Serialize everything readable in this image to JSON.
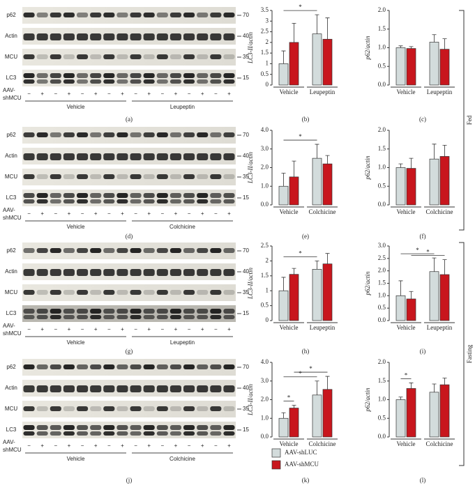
{
  "conditions": [
    "Fed",
    "Fasting"
  ],
  "legend": {
    "series": [
      {
        "name": "AAV-shLUC",
        "color": "#d3dcdc"
      },
      {
        "name": "AAV-shMCU",
        "color": "#c8161d"
      }
    ]
  },
  "blots": [
    {
      "panel": "(a)",
      "rows": [
        {
          "label": "p62",
          "marker": "70"
        },
        {
          "label": "Actin",
          "marker": "40"
        },
        {
          "label": "MCU",
          "marker": "35"
        },
        {
          "label": "LC3",
          "marker": "15"
        }
      ],
      "aav": "AAV-",
      "shmcu": "shMCU",
      "lane_signs": [
        "−",
        "+",
        "−",
        "+",
        "−",
        "+",
        "−",
        "+",
        "−",
        "+",
        "−",
        "+",
        "−",
        "+",
        "−",
        "+"
      ],
      "groups": [
        "Vehicle",
        "Leupeptin"
      ]
    },
    {
      "panel": "(d)",
      "rows": [
        {
          "label": "p62",
          "marker": "70"
        },
        {
          "label": "Actin",
          "marker": "40"
        },
        {
          "label": "MCU",
          "marker": "35"
        },
        {
          "label": "LC3",
          "marker": "15"
        }
      ],
      "aav": "AAV-",
      "shmcu": "shMCU",
      "lane_signs": [
        "−",
        "+",
        "−",
        "+",
        "−",
        "+",
        "−",
        "+",
        "−",
        "+",
        "−",
        "+",
        "−",
        "+",
        "−",
        "+"
      ],
      "groups": [
        "Vehicle",
        "Colchicine"
      ]
    },
    {
      "panel": "(g)",
      "rows": [
        {
          "label": "p62",
          "marker": "70"
        },
        {
          "label": "Actin",
          "marker": "40"
        },
        {
          "label": "MCU",
          "marker": "35"
        },
        {
          "label": "LC3",
          "marker": "15"
        }
      ],
      "aav": "AAV-",
      "shmcu": "shMCU",
      "lane_signs": [
        "−",
        "+",
        "−",
        "+",
        "−",
        "+",
        "−",
        "+",
        "−",
        "+",
        "−",
        "+",
        "−",
        "+",
        "−",
        "+"
      ],
      "groups": [
        "Vehicle",
        "Leupeptin"
      ]
    },
    {
      "panel": "(j)",
      "rows": [
        {
          "label": "p62",
          "marker": "70"
        },
        {
          "label": "Actin",
          "marker": "40"
        },
        {
          "label": "MCU",
          "marker": "35"
        },
        {
          "label": "LC3",
          "marker": "15"
        }
      ],
      "aav": "AAV-",
      "shmcu": "shMCU",
      "lane_signs": [
        "−",
        "+",
        "−",
        "+",
        "−",
        "+",
        "−",
        "+",
        "−",
        "+",
        "−",
        "+",
        "−",
        "+",
        "−",
        "+"
      ],
      "groups": [
        "Vehicle",
        "Colchicine"
      ]
    }
  ],
  "chart_data": [
    {
      "type": "bar",
      "panel": "(b)",
      "ylabel": "LC3-II/actin",
      "categories": [
        "Vehicle",
        "Leupeptin"
      ],
      "ylim": [
        0,
        3.5
      ],
      "yticks": [
        0,
        0.5,
        1,
        1.5,
        2,
        2.5,
        3,
        3.5
      ],
      "series": [
        {
          "values": [
            1.0,
            2.4
          ],
          "errors": [
            0.6,
            0.9
          ]
        },
        {
          "values": [
            2.0,
            2.15
          ],
          "errors": [
            0.9,
            1.0
          ]
        }
      ],
      "significance": [
        {
          "label": "*",
          "between": [
            [
              0,
              0
            ],
            [
              1,
              0
            ]
          ]
        }
      ]
    },
    {
      "type": "bar",
      "panel": "(c)",
      "ylabel": "p62/actin",
      "categories": [
        "Vehicle",
        "Leupeptin"
      ],
      "ylim": [
        0,
        2.0
      ],
      "yticks": [
        {
          "value": 0,
          "label": "0.0"
        },
        0.5,
        {
          "value": 1,
          "label": "1.0"
        },
        1.5,
        {
          "value": 2,
          "label": "2.0"
        }
      ],
      "series": [
        {
          "values": [
            1.0,
            1.15
          ],
          "errors": [
            0.05,
            0.2
          ]
        },
        {
          "values": [
            0.98,
            0.96
          ],
          "errors": [
            0.05,
            0.28
          ]
        }
      ],
      "significance": []
    },
    {
      "type": "bar",
      "panel": "(e)",
      "ylabel": "LC3-II/actin",
      "categories": [
        "Vehicle",
        "Colchicine"
      ],
      "ylim": [
        0,
        4.0
      ],
      "yticks": [
        {
          "value": 0,
          "label": "0.0"
        },
        {
          "value": 1,
          "label": "1.0"
        },
        {
          "value": 2,
          "label": "2.0"
        },
        {
          "value": 3,
          "label": "3.0"
        },
        {
          "value": 4,
          "label": "4.0"
        }
      ],
      "series": [
        {
          "values": [
            1.0,
            2.5
          ],
          "errors": [
            0.7,
            0.75
          ]
        },
        {
          "values": [
            1.5,
            2.2
          ],
          "errors": [
            0.85,
            0.45
          ]
        }
      ],
      "significance": [
        {
          "label": "*",
          "between": [
            [
              0,
              0
            ],
            [
              1,
              0
            ]
          ]
        }
      ]
    },
    {
      "type": "bar",
      "panel": "(f)",
      "ylabel": "p62/actin",
      "categories": [
        "Vehicle",
        "Colchicine"
      ],
      "ylim": [
        0,
        2.0
      ],
      "yticks": [
        {
          "value": 0,
          "label": "0.0"
        },
        0.5,
        {
          "value": 1,
          "label": "1.0"
        },
        1.5,
        {
          "value": 2,
          "label": "2.0"
        }
      ],
      "series": [
        {
          "values": [
            1.0,
            1.23
          ],
          "errors": [
            0.1,
            0.4
          ]
        },
        {
          "values": [
            0.98,
            1.3
          ],
          "errors": [
            0.27,
            0.3
          ]
        }
      ],
      "significance": []
    },
    {
      "type": "bar",
      "panel": "(h)",
      "ylabel": "LC3-II/actin",
      "categories": [
        "Vehicle",
        "Leupeptin"
      ],
      "ylim": [
        0,
        2.5
      ],
      "yticks": [
        0,
        0.5,
        1,
        1.5,
        2,
        2.5
      ],
      "series": [
        {
          "values": [
            1.0,
            1.72
          ],
          "errors": [
            0.45,
            0.28
          ]
        },
        {
          "values": [
            1.55,
            1.9
          ],
          "errors": [
            0.2,
            0.35
          ]
        }
      ],
      "significance": [
        {
          "label": "*",
          "between": [
            [
              0,
              0
            ],
            [
              1,
              0
            ]
          ]
        }
      ]
    },
    {
      "type": "bar",
      "panel": "(i)",
      "ylabel": "p62/actin",
      "categories": [
        "Vehicle",
        "Leupeptin"
      ],
      "ylim": [
        0,
        3.0
      ],
      "yticks": [
        {
          "value": 0,
          "label": "0.0"
        },
        0.5,
        {
          "value": 1,
          "label": "1.0"
        },
        1.5,
        {
          "value": 2,
          "label": "2.0"
        },
        2.5,
        {
          "value": 3,
          "label": "3.0"
        }
      ],
      "series": [
        {
          "values": [
            1.0,
            1.97
          ],
          "errors": [
            0.6,
            0.55
          ]
        },
        {
          "values": [
            0.87,
            1.85
          ],
          "errors": [
            0.3,
            0.6
          ]
        }
      ],
      "significance": [
        {
          "label": "*",
          "between": [
            [
              0,
              1
            ],
            [
              1,
              1
            ]
          ]
        },
        {
          "label": "*",
          "between": [
            [
              0,
              0
            ],
            [
              1,
              0
            ]
          ]
        }
      ]
    },
    {
      "type": "bar",
      "panel": "(k)",
      "ylabel": "LC3-II/actin",
      "categories": [
        "Vehicle",
        "Colchicine"
      ],
      "ylim": [
        0,
        4.0
      ],
      "yticks": [
        {
          "value": 0,
          "label": "0.0"
        },
        {
          "value": 1,
          "label": "1.0"
        },
        {
          "value": 2,
          "label": "2.0"
        },
        {
          "value": 3,
          "label": "3.0"
        },
        {
          "value": 4,
          "label": "4.0"
        }
      ],
      "series": [
        {
          "values": [
            1.0,
            2.25
          ],
          "errors": [
            0.3,
            0.75
          ]
        },
        {
          "values": [
            1.55,
            2.55
          ],
          "errors": [
            0.15,
            0.7
          ]
        }
      ],
      "significance": [
        {
          "label": "*",
          "between": [
            [
              0,
              0
            ],
            [
              0,
              1
            ]
          ]
        },
        {
          "label": "*",
          "between": [
            [
              0,
              0
            ],
            [
              1,
              0
            ]
          ]
        },
        {
          "label": "*",
          "between": [
            [
              0,
              1
            ],
            [
              1,
              1
            ]
          ]
        }
      ]
    },
    {
      "type": "bar",
      "panel": "(l)",
      "ylabel": "p62/actin",
      "categories": [
        "Vehicle",
        "Colchicine"
      ],
      "ylim": [
        0,
        2.0
      ],
      "yticks": [
        {
          "value": 0,
          "label": "0.0"
        },
        0.5,
        {
          "value": 1,
          "label": "1.0"
        },
        1.5,
        {
          "value": 2,
          "label": "2.0"
        }
      ],
      "series": [
        {
          "values": [
            1.0,
            1.2
          ],
          "errors": [
            0.07,
            0.22
          ]
        },
        {
          "values": [
            1.3,
            1.4
          ],
          "errors": [
            0.15,
            0.18
          ]
        }
      ],
      "significance": [
        {
          "label": "*",
          "between": [
            [
              0,
              0
            ],
            [
              0,
              1
            ]
          ]
        }
      ]
    }
  ]
}
